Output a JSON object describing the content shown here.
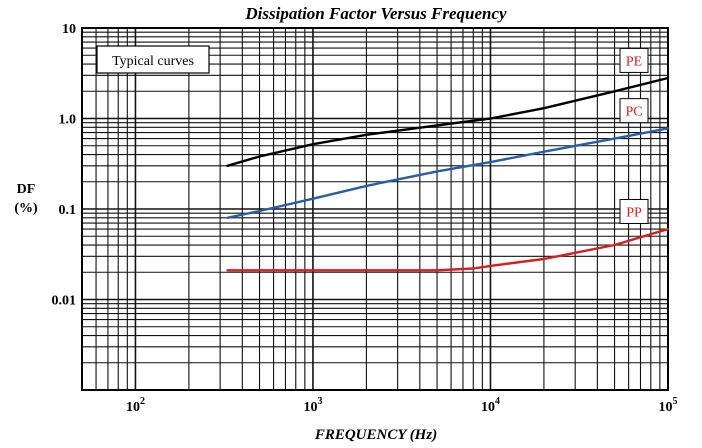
{
  "chart_data": {
    "type": "line",
    "title": "Dissipation Factor Versus Frequency",
    "xlabel": "FREQUENCY (Hz)",
    "ylabel_line1": "DF",
    "ylabel_line2": "(%)",
    "annotation": "Typical curves",
    "x_scale": "log",
    "y_scale": "log",
    "xlim": [
      50,
      100000
    ],
    "ylim": [
      0.001,
      10
    ],
    "grid": true,
    "x_ticks": [
      {
        "base": "10",
        "exp": "2",
        "value": 100
      },
      {
        "base": "10",
        "exp": "3",
        "value": 1000
      },
      {
        "base": "10",
        "exp": "4",
        "value": 10000
      },
      {
        "base": "10",
        "exp": "5",
        "value": 100000
      }
    ],
    "y_ticks": [
      {
        "label": "10",
        "value": 10
      },
      {
        "label": "1.0",
        "value": 1
      },
      {
        "label": "0.1",
        "value": 0.1
      },
      {
        "label": "0.01",
        "value": 0.01
      }
    ],
    "series": [
      {
        "name": "PE",
        "color": "#000000",
        "x": [
          330,
          500,
          1000,
          2000,
          5000,
          10000,
          20000,
          50000,
          100000
        ],
        "y": [
          0.3,
          0.38,
          0.52,
          0.66,
          0.84,
          1.0,
          1.3,
          2.0,
          2.8
        ]
      },
      {
        "name": "PC",
        "color": "#2a5caa",
        "x": [
          330,
          500,
          1000,
          2000,
          5000,
          10000,
          20000,
          50000,
          100000
        ],
        "y": [
          0.08,
          0.095,
          0.13,
          0.18,
          0.26,
          0.33,
          0.43,
          0.6,
          0.78
        ]
      },
      {
        "name": "PP",
        "color": "#d42020",
        "x": [
          330,
          500,
          1000,
          2000,
          5000,
          8000,
          10000,
          20000,
          50000,
          100000
        ],
        "y": [
          0.021,
          0.021,
          0.021,
          0.021,
          0.021,
          0.022,
          0.0235,
          0.028,
          0.04,
          0.06
        ]
      }
    ]
  }
}
